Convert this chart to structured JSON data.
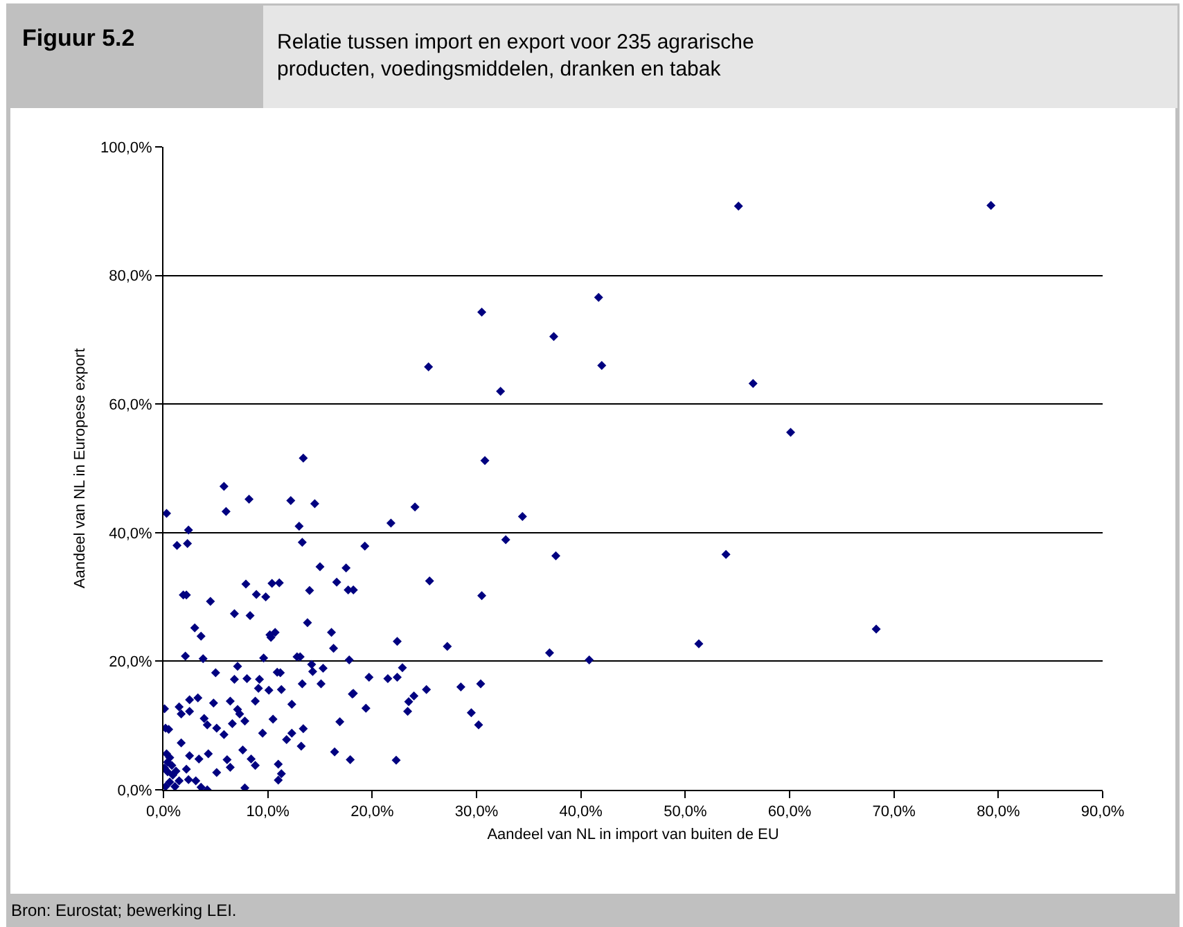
{
  "chart_data": {
    "type": "scatter",
    "title": "Figuur 5.2",
    "subtitle": "Relatie tussen import en export voor 235 agrarische producten, voedingsmiddelen, dranken en tabak",
    "xlabel": "Aandeel van NL in import van buiten de EU",
    "ylabel": "Aandeel van NL in Europese export",
    "annotations": [
      "Bron: Eurostat; bewerking LEI."
    ],
    "x": [
      55.1,
      79.3,
      30.5,
      41.7,
      37.4,
      42,
      25.4,
      32.3,
      56.5,
      60.1,
      30.8,
      13.4,
      34.4,
      24.1,
      37.6,
      53.9,
      32.8,
      68.3,
      51.3,
      40.8,
      37,
      30.5,
      25.5,
      27.2,
      30.4,
      29.5,
      30.2,
      28.5,
      25.2,
      24,
      23.4,
      22.4,
      22.9,
      22.4,
      21.8,
      22.3,
      23.5,
      21.5,
      12.2,
      13,
      14.5,
      13.3,
      19.3,
      17.5,
      15,
      16.6,
      17.7,
      18.2,
      11.1,
      14,
      13.8,
      16.1,
      16.3,
      15.3,
      14.2,
      14.3,
      12.8,
      13.1,
      17.8,
      19.7,
      19.4,
      18.1,
      18.2,
      16.9,
      15.1,
      13.3,
      12.3,
      13.4,
      11.8,
      12.3,
      10.9,
      11.3,
      10.1,
      10.5,
      13.2,
      16.4,
      17.9,
      11,
      11.3,
      11,
      10.3,
      10.7,
      10.2,
      11.2,
      0.3,
      1.3,
      5.8,
      6,
      8.2,
      2.4,
      2.3,
      1.9,
      2.2,
      4.5,
      3,
      3.6,
      8.9,
      9.8,
      7.9,
      10.4,
      6.8,
      8.3,
      2.1,
      3.8,
      5,
      7.1,
      9.6,
      6.8,
      8,
      9.2,
      0.1,
      2.5,
      3.3,
      4.8,
      1.5,
      1.7,
      2.5,
      3.9,
      6.4,
      7.3,
      7.8,
      8.8,
      9.1,
      5.1,
      6.6,
      7.1,
      4.2,
      5.8,
      0.2,
      0.5,
      1.7,
      0.3,
      0.6,
      2.5,
      3.4,
      4.3,
      5.1,
      6.1,
      6.4,
      7.6,
      8.4,
      8.8,
      9.5,
      0.1,
      0.4,
      0.9,
      1.5,
      0.6,
      0.2,
      1.1,
      2.4,
      3.1,
      3.6,
      4.2,
      7.8,
      0.8,
      1.2,
      0.4,
      2.2
    ],
    "series": [
      {
        "color": "#000080",
        "values": [
          90.8,
          90.9,
          74.3,
          76.6,
          70.5,
          66,
          65.8,
          62,
          63.2,
          55.6,
          51.2,
          51.6,
          42.5,
          44,
          36.4,
          36.6,
          38.9,
          25,
          22.7,
          20.2,
          21.3,
          30.2,
          32.5,
          22.3,
          16.5,
          12,
          10.1,
          16,
          15.6,
          14.6,
          12.2,
          23.1,
          19,
          17.5,
          41.5,
          4.6,
          13.7,
          17.3,
          45,
          41,
          44.5,
          38.5,
          37.9,
          34.5,
          34.7,
          32.3,
          31.1,
          31.1,
          32.2,
          31,
          26,
          24.5,
          22,
          18.9,
          19.5,
          18.4,
          20.7,
          20.7,
          20.2,
          17.5,
          12.7,
          14.9,
          15,
          10.6,
          16.5,
          16.5,
          13.3,
          9.5,
          7.8,
          8.8,
          18.3,
          15.6,
          15.5,
          11,
          6.8,
          5.9,
          4.7,
          4,
          2.5,
          1.5,
          23.7,
          24.5,
          24.1,
          18.2,
          43,
          38,
          47.2,
          43.3,
          45.2,
          40.4,
          38.3,
          30.3,
          30.3,
          29.3,
          25.2,
          23.9,
          30.4,
          30,
          32,
          32.1,
          27.4,
          27.1,
          20.8,
          20.4,
          18.2,
          19.2,
          20.5,
          17.2,
          17.3,
          17.2,
          12.6,
          14,
          14.3,
          13.5,
          12.9,
          11.8,
          12.2,
          11.1,
          13.8,
          11.8,
          10.7,
          13.8,
          15.8,
          9.6,
          10.3,
          12.5,
          10.1,
          8.6,
          9.6,
          9.4,
          7.3,
          5.6,
          5,
          5.3,
          4.8,
          5.6,
          2.7,
          4.7,
          3.5,
          6.2,
          4.8,
          3.8,
          8.8,
          3.4,
          2.8,
          2.3,
          1.4,
          1.2,
          0.5,
          0.5,
          1.6,
          1.4,
          0.4,
          0,
          0.3,
          3.8,
          2.9,
          4.3,
          3.2
        ]
      }
    ],
    "xlim": [
      0,
      90
    ],
    "ylim": [
      0,
      100
    ],
    "xticks": [
      {
        "value": 0,
        "label": "0,0%"
      },
      {
        "value": 10,
        "label": "10,0%"
      },
      {
        "value": 20,
        "label": "20,0%"
      },
      {
        "value": 30,
        "label": "30,0%"
      },
      {
        "value": 40,
        "label": "40,0%"
      },
      {
        "value": 50,
        "label": "50,0%"
      },
      {
        "value": 60,
        "label": "60,0%"
      },
      {
        "value": 70,
        "label": "70,0%"
      },
      {
        "value": 80,
        "label": "80,0%"
      },
      {
        "value": 90,
        "label": "90,0%"
      }
    ],
    "yticks": [
      {
        "value": 0,
        "label": "0,0%"
      },
      {
        "value": 20,
        "label": "20,0%"
      },
      {
        "value": 40,
        "label": "40,0%"
      },
      {
        "value": 60,
        "label": "60,0%"
      },
      {
        "value": 80,
        "label": "80,0%"
      },
      {
        "value": 100,
        "label": "100,0%"
      }
    ],
    "grid": "y",
    "marker": "diamond"
  }
}
